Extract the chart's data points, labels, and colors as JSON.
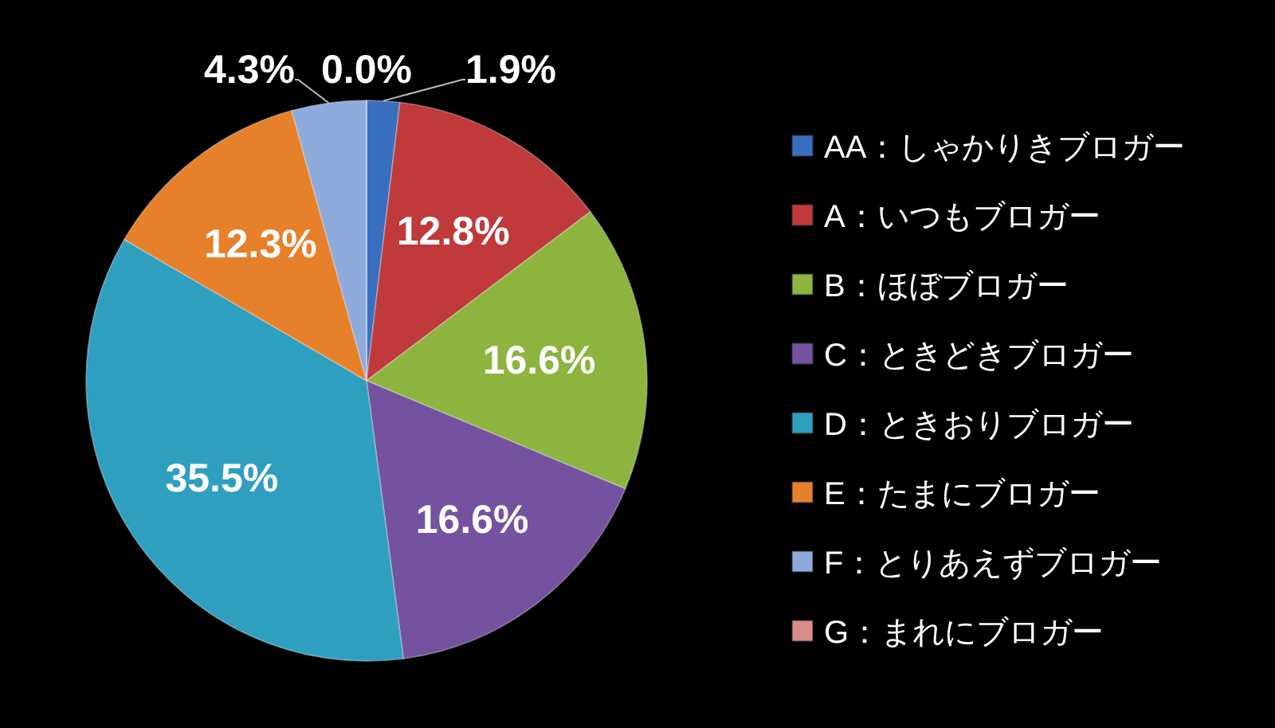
{
  "chart_data": {
    "type": "pie",
    "categories": [
      "AA：しゃかりきブロガー",
      "A：いつもブロガー",
      "B：ほぼブロガー",
      "C：ときどきブロガー",
      "D：ときおりブロガー",
      "E：たまにブロガー",
      "F：とりあえずブロガー",
      "G：まれにブロガー"
    ],
    "values": [
      1.9,
      12.8,
      16.6,
      16.6,
      35.5,
      12.3,
      4.3,
      0.0
    ],
    "value_labels": [
      "1.9%",
      "12.8%",
      "16.6%",
      "16.6%",
      "35.5%",
      "12.3%",
      "4.3%",
      "0.0%"
    ],
    "colors": [
      "#3a6fc0",
      "#c0393b",
      "#8db43e",
      "#7452a0",
      "#2f9fc0",
      "#e7802a",
      "#8faadc",
      "#d88c8c"
    ],
    "legend": "right"
  }
}
